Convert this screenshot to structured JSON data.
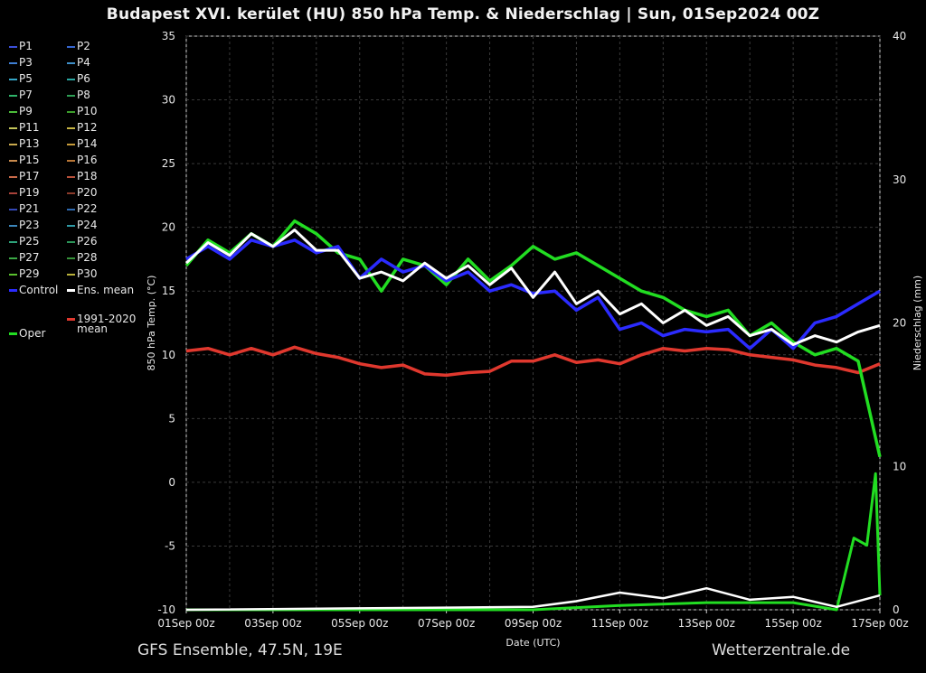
{
  "header": {
    "title": "Budapest XVI. kerület  (HU)  850 hPa Temp. & Niederschlag | Sun, 01Sep2024 00Z"
  },
  "footer": {
    "left": "GFS Ensemble, 47.5N, 19E",
    "right": "Wetterzentrale.de"
  },
  "legend": {
    "members": [
      {
        "label": "P1",
        "color": "#3b4fd9"
      },
      {
        "label": "P2",
        "color": "#3566d0"
      },
      {
        "label": "P3",
        "color": "#3f7fd4"
      },
      {
        "label": "P4",
        "color": "#3e8fc8"
      },
      {
        "label": "P5",
        "color": "#35a6c7"
      },
      {
        "label": "P6",
        "color": "#2aa6a0"
      },
      {
        "label": "P7",
        "color": "#2fb46a"
      },
      {
        "label": "P8",
        "color": "#2e9f55"
      },
      {
        "label": "P9",
        "color": "#4cbd3a"
      },
      {
        "label": "P10",
        "color": "#3c9e2c"
      },
      {
        "label": "P11",
        "color": "#c3c55a"
      },
      {
        "label": "P12",
        "color": "#c7b544"
      },
      {
        "label": "P13",
        "color": "#c9a94e"
      },
      {
        "label": "P14",
        "color": "#c59a3a"
      },
      {
        "label": "P15",
        "color": "#c98b4e"
      },
      {
        "label": "P16",
        "color": "#b87636"
      },
      {
        "label": "P17",
        "color": "#c86a4a"
      },
      {
        "label": "P18",
        "color": "#b8503a"
      },
      {
        "label": "P19",
        "color": "#a8423a"
      },
      {
        "label": "P20",
        "color": "#8a3a2a"
      },
      {
        "label": "P21",
        "color": "#3448b6"
      },
      {
        "label": "P22",
        "color": "#2f6ab0"
      },
      {
        "label": "P23",
        "color": "#3c86ba"
      },
      {
        "label": "P24",
        "color": "#2f9aa5"
      },
      {
        "label": "P25",
        "color": "#2ea37a"
      },
      {
        "label": "P26",
        "color": "#2b9458"
      },
      {
        "label": "P27",
        "color": "#3ba845"
      },
      {
        "label": "P28",
        "color": "#36923a"
      },
      {
        "label": "P29",
        "color": "#59c02e"
      },
      {
        "label": "P30",
        "color": "#b8b03a"
      }
    ],
    "control": {
      "label": "Control",
      "color": "#2b2bff"
    },
    "ens_mean": {
      "label": "Ens. mean",
      "color": "#ffffff"
    },
    "climate": {
      "label": "1991-2020",
      "label2": "mean",
      "color": "#e0382e"
    },
    "oper": {
      "label": "Oper",
      "color": "#22dd22"
    }
  },
  "chart_data": {
    "type": "line",
    "title": "Budapest XVI. kerület  (HU)  850 hPa Temp. & Niederschlag | Sun, 01Sep2024 00Z",
    "xlabel": "Date (UTC)",
    "ylabel": "850 hPa Temp. (°C)",
    "y2label": "Niederschlag (mm)",
    "ylim": [
      -10,
      35
    ],
    "y2lim": [
      0,
      40
    ],
    "yticks": [
      35,
      30,
      25,
      20,
      15,
      10,
      5,
      0,
      -5,
      -10
    ],
    "y2ticks": [
      40,
      30,
      20,
      10,
      0
    ],
    "xticks": [
      "01Sep 00z",
      "03Sep 00z",
      "05Sep 00z",
      "07Sep 00z",
      "09Sep 00z",
      "11Sep 00z",
      "13Sep 00z",
      "15Sep 00z",
      "17Sep 00z"
    ],
    "x_range_days": [
      0,
      16
    ],
    "grid": true,
    "temperature": {
      "oper": [
        [
          0,
          17.0
        ],
        [
          0.5,
          19.0
        ],
        [
          1,
          18.0
        ],
        [
          1.5,
          19.5
        ],
        [
          2,
          18.5
        ],
        [
          2.5,
          20.5
        ],
        [
          3,
          19.5
        ],
        [
          3.5,
          18.0
        ],
        [
          4,
          17.5
        ],
        [
          4.5,
          15.0
        ],
        [
          5,
          17.5
        ],
        [
          5.5,
          17.0
        ],
        [
          6,
          15.5
        ],
        [
          6.5,
          17.5
        ],
        [
          7,
          15.8
        ],
        [
          7.5,
          17.0
        ],
        [
          8,
          18.5
        ],
        [
          8.5,
          17.5
        ],
        [
          9,
          18.0
        ],
        [
          9.5,
          17.0
        ],
        [
          10,
          16.0
        ],
        [
          10.5,
          15.0
        ],
        [
          11,
          14.5
        ],
        [
          11.5,
          13.5
        ],
        [
          12,
          13.0
        ],
        [
          12.5,
          13.5
        ],
        [
          13,
          11.5
        ],
        [
          13.5,
          12.5
        ],
        [
          14,
          11.0
        ],
        [
          14.5,
          10.0
        ],
        [
          15,
          10.5
        ],
        [
          15.5,
          9.5
        ],
        [
          16,
          2.0
        ]
      ],
      "control": [
        [
          0,
          17.5
        ],
        [
          0.5,
          18.5
        ],
        [
          1,
          17.5
        ],
        [
          1.5,
          19.0
        ],
        [
          2,
          18.5
        ],
        [
          2.5,
          19.0
        ],
        [
          3,
          18.0
        ],
        [
          3.5,
          18.5
        ],
        [
          4,
          16.0
        ],
        [
          4.5,
          17.5
        ],
        [
          5,
          16.5
        ],
        [
          5.5,
          17.0
        ],
        [
          6,
          15.8
        ],
        [
          6.5,
          16.5
        ],
        [
          7,
          15.0
        ],
        [
          7.5,
          15.5
        ],
        [
          8,
          14.8
        ],
        [
          8.5,
          15.0
        ],
        [
          9,
          13.5
        ],
        [
          9.5,
          14.5
        ],
        [
          10,
          12.0
        ],
        [
          10.5,
          12.5
        ],
        [
          11,
          11.5
        ],
        [
          11.5,
          12.0
        ],
        [
          12,
          11.8
        ],
        [
          12.5,
          12.0
        ],
        [
          13,
          10.5
        ],
        [
          13.5,
          12.0
        ],
        [
          14,
          10.5
        ],
        [
          14.5,
          12.5
        ],
        [
          15,
          13.0
        ],
        [
          15.5,
          14.0
        ],
        [
          16,
          15.0
        ]
      ],
      "ens_mean": [
        [
          0,
          17.2
        ],
        [
          0.5,
          18.8
        ],
        [
          1,
          17.8
        ],
        [
          1.5,
          19.5
        ],
        [
          2,
          18.5
        ],
        [
          2.5,
          19.8
        ],
        [
          3,
          18.2
        ],
        [
          3.5,
          18.2
        ],
        [
          4,
          16.0
        ],
        [
          4.5,
          16.5
        ],
        [
          5,
          15.8
        ],
        [
          5.5,
          17.2
        ],
        [
          6,
          16.0
        ],
        [
          6.5,
          17.0
        ],
        [
          7,
          15.5
        ],
        [
          7.5,
          16.8
        ],
        [
          8,
          14.5
        ],
        [
          8.5,
          16.5
        ],
        [
          9,
          14.0
        ],
        [
          9.5,
          15.0
        ],
        [
          10,
          13.2
        ],
        [
          10.5,
          14.0
        ],
        [
          11,
          12.5
        ],
        [
          11.5,
          13.5
        ],
        [
          12,
          12.3
        ],
        [
          12.5,
          13.0
        ],
        [
          13,
          11.5
        ],
        [
          13.5,
          12.0
        ],
        [
          14,
          10.8
        ],
        [
          14.5,
          11.5
        ],
        [
          15,
          11.0
        ],
        [
          15.5,
          11.8
        ],
        [
          16,
          12.3
        ]
      ],
      "climate_mean": [
        [
          0,
          10.3
        ],
        [
          0.5,
          10.5
        ],
        [
          1,
          10.0
        ],
        [
          1.5,
          10.5
        ],
        [
          2,
          10.0
        ],
        [
          2.5,
          10.6
        ],
        [
          3,
          10.1
        ],
        [
          3.5,
          9.8
        ],
        [
          4,
          9.3
        ],
        [
          4.5,
          9.0
        ],
        [
          5,
          9.2
        ],
        [
          5.5,
          8.5
        ],
        [
          6,
          8.4
        ],
        [
          6.5,
          8.6
        ],
        [
          7,
          8.7
        ],
        [
          7.5,
          9.5
        ],
        [
          8,
          9.5
        ],
        [
          8.5,
          10.0
        ],
        [
          9,
          9.4
        ],
        [
          9.5,
          9.6
        ],
        [
          10,
          9.3
        ],
        [
          10.5,
          10.0
        ],
        [
          11,
          10.5
        ],
        [
          11.5,
          10.3
        ],
        [
          12,
          10.5
        ],
        [
          12.5,
          10.4
        ],
        [
          13,
          10.0
        ],
        [
          13.5,
          9.8
        ],
        [
          14,
          9.6
        ],
        [
          14.5,
          9.2
        ],
        [
          15,
          9.0
        ],
        [
          15.5,
          8.6
        ],
        [
          16,
          9.3
        ]
      ]
    },
    "precipitation_mm": {
      "oper": [
        [
          0,
          0
        ],
        [
          8,
          0
        ],
        [
          10,
          0.3
        ],
        [
          12,
          0.5
        ],
        [
          14,
          0.5
        ],
        [
          15,
          0
        ],
        [
          15.4,
          5.0
        ],
        [
          15.7,
          4.5
        ],
        [
          15.9,
          9.5
        ],
        [
          16,
          1.0
        ]
      ],
      "ens_mean": [
        [
          0,
          0
        ],
        [
          8,
          0.2
        ],
        [
          9,
          0.6
        ],
        [
          10,
          1.2
        ],
        [
          11,
          0.8
        ],
        [
          12,
          1.5
        ],
        [
          13,
          0.7
        ],
        [
          14,
          0.9
        ],
        [
          15,
          0.2
        ],
        [
          16,
          1.0
        ]
      ]
    }
  }
}
